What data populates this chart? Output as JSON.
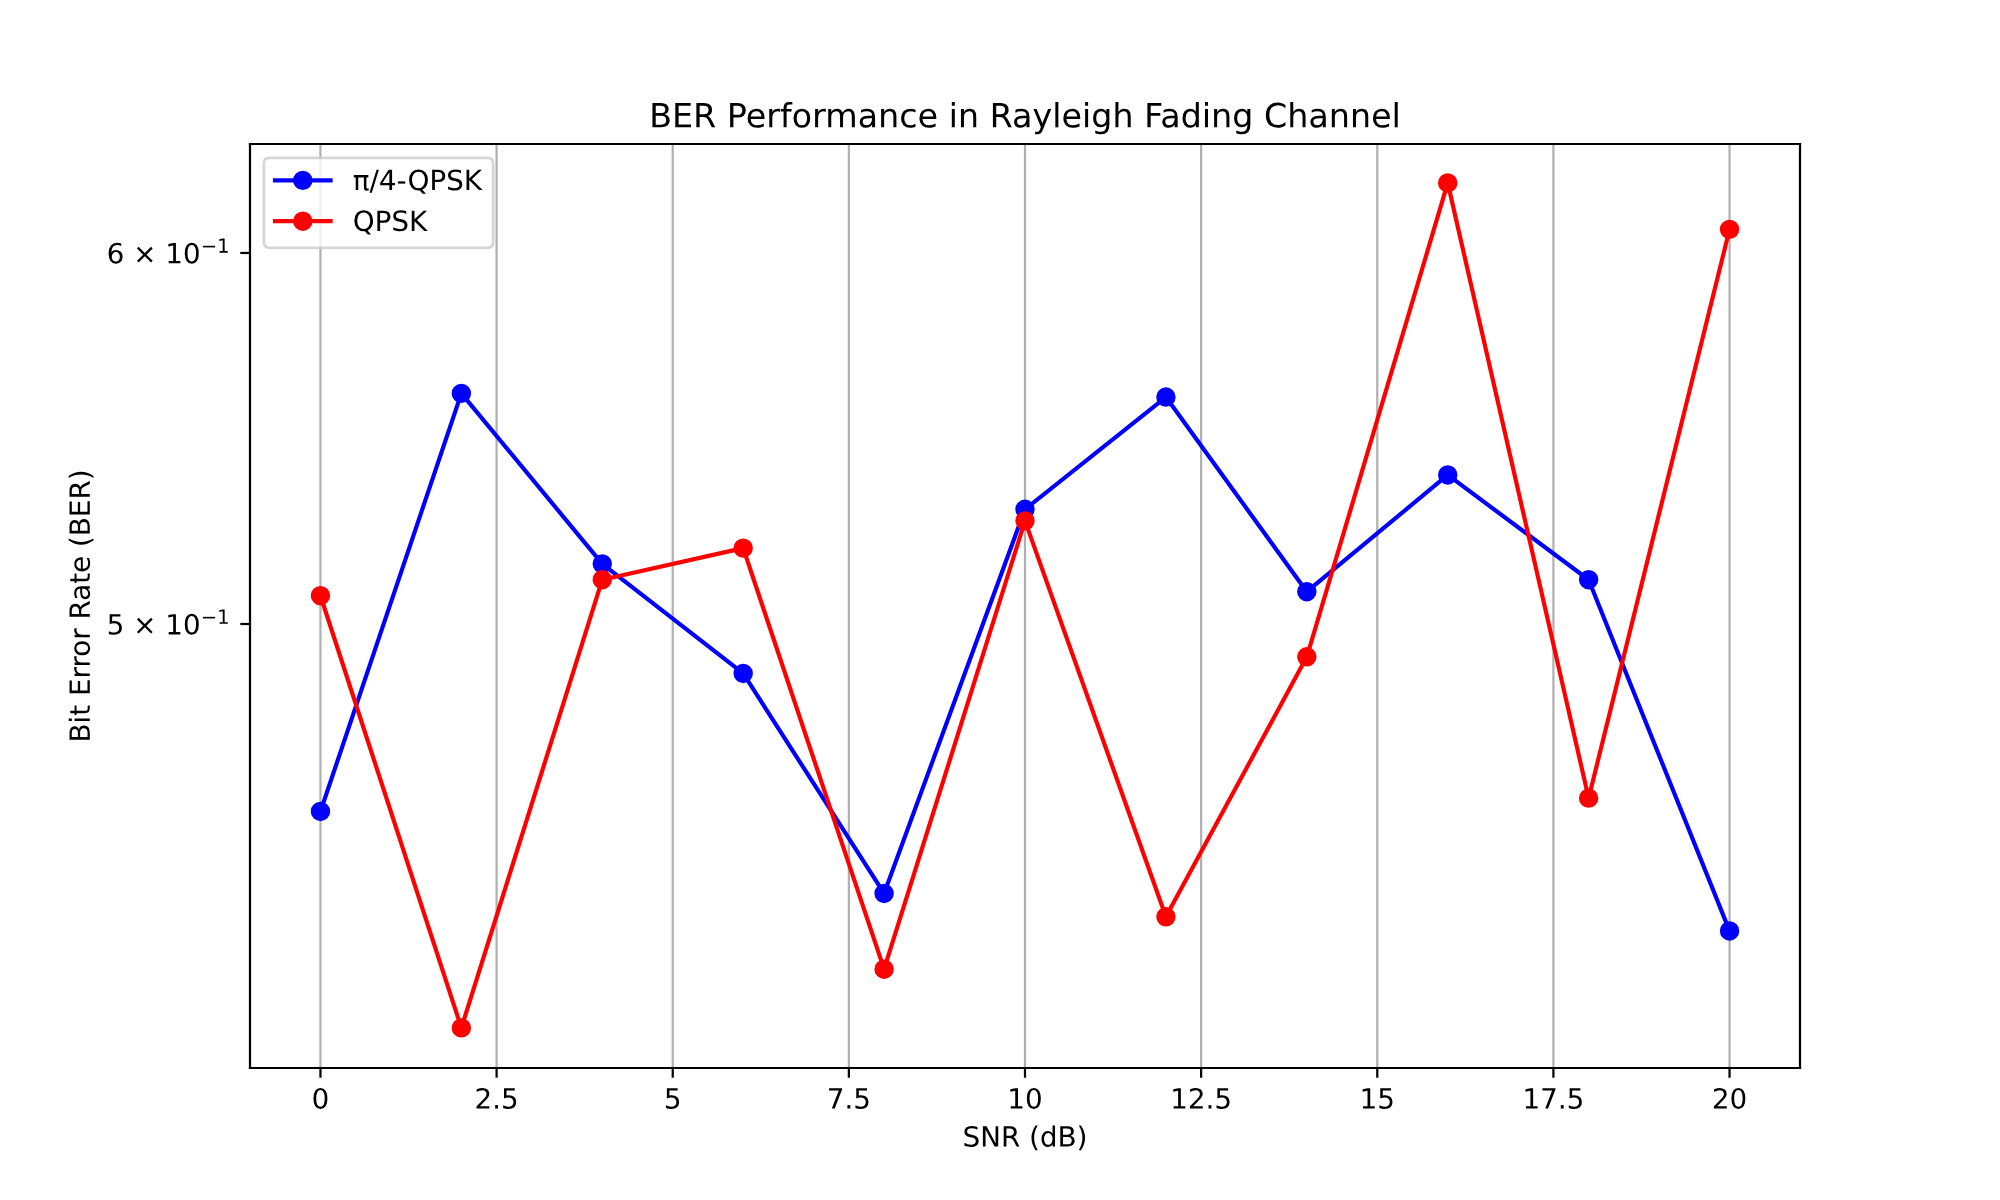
{
  "chart_data": {
    "type": "line",
    "title": "BER Performance in Rayleigh Fading Channel",
    "xlabel": "SNR (dB)",
    "ylabel": "Bit Error Rate (BER)",
    "x": [
      0,
      2,
      4,
      6,
      8,
      10,
      12,
      14,
      16,
      18,
      20
    ],
    "series": [
      {
        "name": "π/4-QPSK",
        "color": "#0000ff",
        "values": [
          0.456,
          0.56,
          0.515,
          0.488,
          0.438,
          0.529,
          0.559,
          0.508,
          0.538,
          0.511,
          0.43
        ]
      },
      {
        "name": "QPSK",
        "color": "#ff0000",
        "values": [
          0.507,
          0.41,
          0.511,
          0.519,
          0.422,
          0.526,
          0.433,
          0.492,
          0.621,
          0.459,
          0.607
        ]
      }
    ],
    "log": "y",
    "xlim": [
      -1,
      21
    ],
    "xticks": [
      0,
      2.5,
      5,
      7.5,
      10,
      12.5,
      15,
      17.5,
      20
    ],
    "ylim": [
      0.402,
      0.633
    ],
    "yticks": [
      {
        "value": 0.5,
        "label": "5 × 10$^{−1}$"
      },
      {
        "value": 0.6,
        "label": "6 × 10$^{−1}$"
      }
    ],
    "grid": "x",
    "legend": "top left",
    "marker": "circle",
    "line_style": "solid"
  }
}
